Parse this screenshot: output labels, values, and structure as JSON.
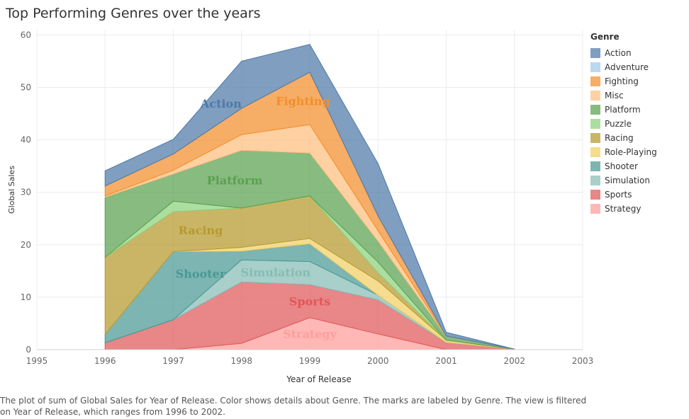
{
  "title": "Top Performing Genres over the years",
  "caption": "The plot of sum of Global Sales for Year of Release.  Color shows details about Genre.  The marks are labeled by Genre. The view is filtered on Year of Release, which ranges from 1996 to 2002.",
  "legend": {
    "title": "Genre",
    "items": [
      {
        "label": "Action",
        "color": "#4e79a7"
      },
      {
        "label": "Adventure",
        "color": "#a0cbe8"
      },
      {
        "label": "Fighting",
        "color": "#f28e2b"
      },
      {
        "label": "Misc",
        "color": "#ffbe7d"
      },
      {
        "label": "Platform",
        "color": "#59a14f"
      },
      {
        "label": "Puzzle",
        "color": "#8cd17d"
      },
      {
        "label": "Racing",
        "color": "#b6992d"
      },
      {
        "label": "Role-Playing",
        "color": "#f1ce63"
      },
      {
        "label": "Shooter",
        "color": "#499894"
      },
      {
        "label": "Simulation",
        "color": "#86bcb6"
      },
      {
        "label": "Sports",
        "color": "#e15759"
      },
      {
        "label": "Strategy",
        "color": "#ff9d9a"
      }
    ]
  },
  "chart_data": {
    "type": "area",
    "stacked": true,
    "xlabel": "Year of Release",
    "ylabel": "Global Sales",
    "xlim": [
      1995,
      2003
    ],
    "ylim": [
      0,
      61
    ],
    "xticks": [
      1995,
      1996,
      1997,
      1998,
      1999,
      2000,
      2001,
      2002,
      2003
    ],
    "yticks": [
      0,
      10,
      20,
      30,
      40,
      50,
      60
    ],
    "grid": true,
    "legend_position": "right",
    "x": [
      1996,
      1997,
      1998,
      1999,
      2000,
      2001,
      2002
    ],
    "series": [
      {
        "name": "Strategy",
        "color": "#ff9d9a",
        "values": [
          0,
          0,
          1.2,
          6.1,
          3.0,
          0,
          0
        ],
        "label_value_x": 1999
      },
      {
        "name": "Sports",
        "color": "#e15759",
        "values": [
          1.3,
          5.7,
          11.7,
          6.3,
          6.5,
          1.4,
          0.1
        ],
        "label_value_x": 1999
      },
      {
        "name": "Simulation",
        "color": "#86bcb6",
        "values": [
          0,
          0,
          4.2,
          4.4,
          0.9,
          0,
          0
        ],
        "label_value_x": 1998.5
      },
      {
        "name": "Shooter",
        "color": "#499894",
        "values": [
          1.6,
          13.0,
          1.7,
          3.4,
          0,
          0,
          0
        ],
        "label_value_x": 1997.4
      },
      {
        "name": "Role-Playing",
        "color": "#f1ce63",
        "values": [
          0,
          0,
          0.7,
          1.0,
          2.7,
          0.4,
          0
        ],
        "label_value_x": null
      },
      {
        "name": "Racing",
        "color": "#b6992d",
        "values": [
          14.7,
          7.6,
          7.5,
          8.1,
          1.6,
          0,
          0
        ],
        "label_value_x": 1997.4
      },
      {
        "name": "Puzzle",
        "color": "#8cd17d",
        "values": [
          0,
          2.0,
          0,
          0,
          2.0,
          0,
          0
        ],
        "label_value_x": null
      },
      {
        "name": "Platform",
        "color": "#59a14f",
        "values": [
          11.5,
          5.2,
          11.0,
          8.2,
          4.0,
          0.8,
          0
        ],
        "label_value_x": 1997.9
      },
      {
        "name": "Misc",
        "color": "#ffbe7d",
        "values": [
          0.2,
          0.7,
          3.0,
          5.4,
          2.0,
          0,
          0
        ],
        "label_value_x": null
      },
      {
        "name": "Fighting",
        "color": "#f28e2b",
        "values": [
          1.9,
          3.1,
          5.0,
          10.0,
          2.8,
          0,
          0
        ],
        "label_value_x": 1998.9
      },
      {
        "name": "Adventure",
        "color": "#a0cbe8",
        "values": [
          0,
          0,
          0,
          0,
          0,
          0,
          0
        ],
        "label_value_x": null
      },
      {
        "name": "Action",
        "color": "#4e79a7",
        "values": [
          2.9,
          2.8,
          9.0,
          5.3,
          10.0,
          0.7,
          0
        ],
        "label_value_x": 1997.7
      }
    ]
  }
}
